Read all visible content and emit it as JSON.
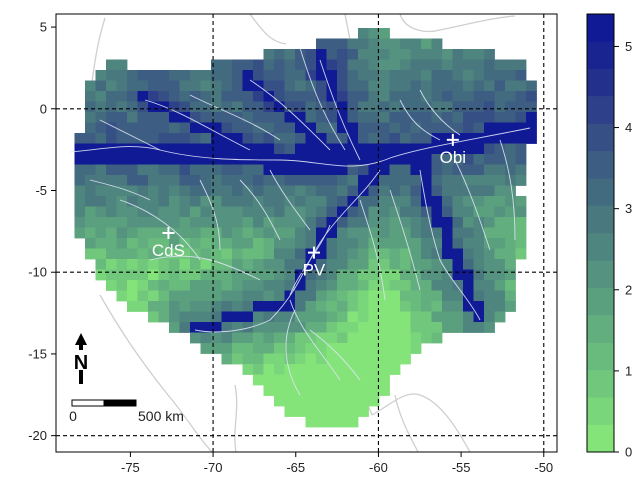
{
  "map": {
    "x_ticks": [
      "-75",
      "-70",
      "-65",
      "-60",
      "-55",
      "-50"
    ],
    "y_ticks": [
      "5",
      "0",
      "-5",
      "-10",
      "-15",
      "-20"
    ],
    "x_values": [
      -75,
      -70,
      -65,
      -60,
      -55,
      -50
    ],
    "y_values": [
      5,
      0,
      -5,
      -10,
      -15,
      -20
    ],
    "xlim": [
      -79.5,
      -49.2
    ],
    "ylim": [
      -21,
      5.8
    ],
    "grid_lines_lon": [
      -70,
      -60,
      -50
    ],
    "grid_lines_lat": [
      0,
      -10,
      -20
    ],
    "grid_style": "dashed",
    "sites": [
      {
        "label": "Obi",
        "lon": -55.5,
        "lat": -1.9
      },
      {
        "label": "CdS",
        "lon": -72.7,
        "lat": -7.6
      },
      {
        "label": "PV",
        "lon": -63.9,
        "lat": -8.8
      }
    ],
    "north_arrow_label": "N",
    "scale_bar": {
      "left_label": "0",
      "right_label": "500 km"
    }
  },
  "colorbar": {
    "ticks": [
      "0",
      "1",
      "2",
      "3",
      "4",
      "5"
    ],
    "tick_values": [
      0,
      1,
      2,
      3,
      4,
      5
    ],
    "min": 0,
    "max": 5.4,
    "levels": 16,
    "colors": [
      "#84e47a",
      "#7ad67b",
      "#71c87c",
      "#69bb7d",
      "#62ae7e",
      "#5ba07e",
      "#55927f",
      "#4f857f",
      "#49787f",
      "#436b80",
      "#3d5e82",
      "#364f85",
      "#2e4089",
      "#24318c",
      "#1a2490",
      "#101a94"
    ]
  }
}
